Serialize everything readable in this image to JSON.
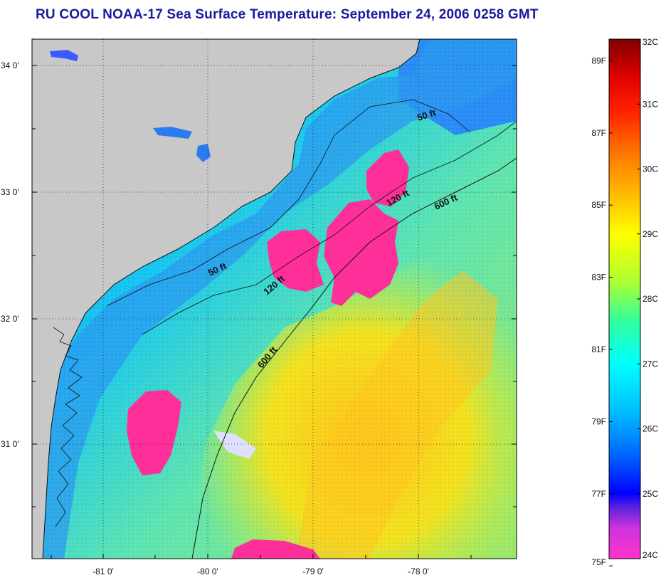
{
  "title": "RU COOL  NOAA-17  Sea Surface Temperature:  September 24, 2006 0258 GMT",
  "map": {
    "lat_labels": [
      "34 0'",
      "33 0'",
      "32 0'",
      "31 0'"
    ],
    "lon_labels": [
      "-81 0'",
      "-80 0'",
      "-79 0'",
      "-78 0'"
    ],
    "depth_labels": [
      "50 ft",
      "120 ft",
      "600 ft",
      "50 ft",
      "120 ft",
      "600 ft"
    ],
    "colors": {
      "land": "#c8c8c8",
      "cloud": "#ff2f9a"
    }
  },
  "colorbar": {
    "celsius_labels": [
      "32C",
      "31C",
      "30C",
      "29C",
      "28C",
      "27C",
      "26C",
      "25C",
      "24C"
    ],
    "fahrenheit_labels": [
      "89F",
      "87F",
      "85F",
      "83F",
      "81F",
      "79F",
      "77F",
      "75F"
    ],
    "celsius_min": 24,
    "celsius_max": 32,
    "colors": [
      "#ff33cc",
      "#aa33ee",
      "#0000ff",
      "#0066ff",
      "#00c8ff",
      "#00ffff",
      "#66ff99",
      "#ccff33",
      "#ffff00",
      "#ffcc00",
      "#ff8000",
      "#ff3300",
      "#ff0000",
      "#cc0000",
      "#800000"
    ]
  }
}
